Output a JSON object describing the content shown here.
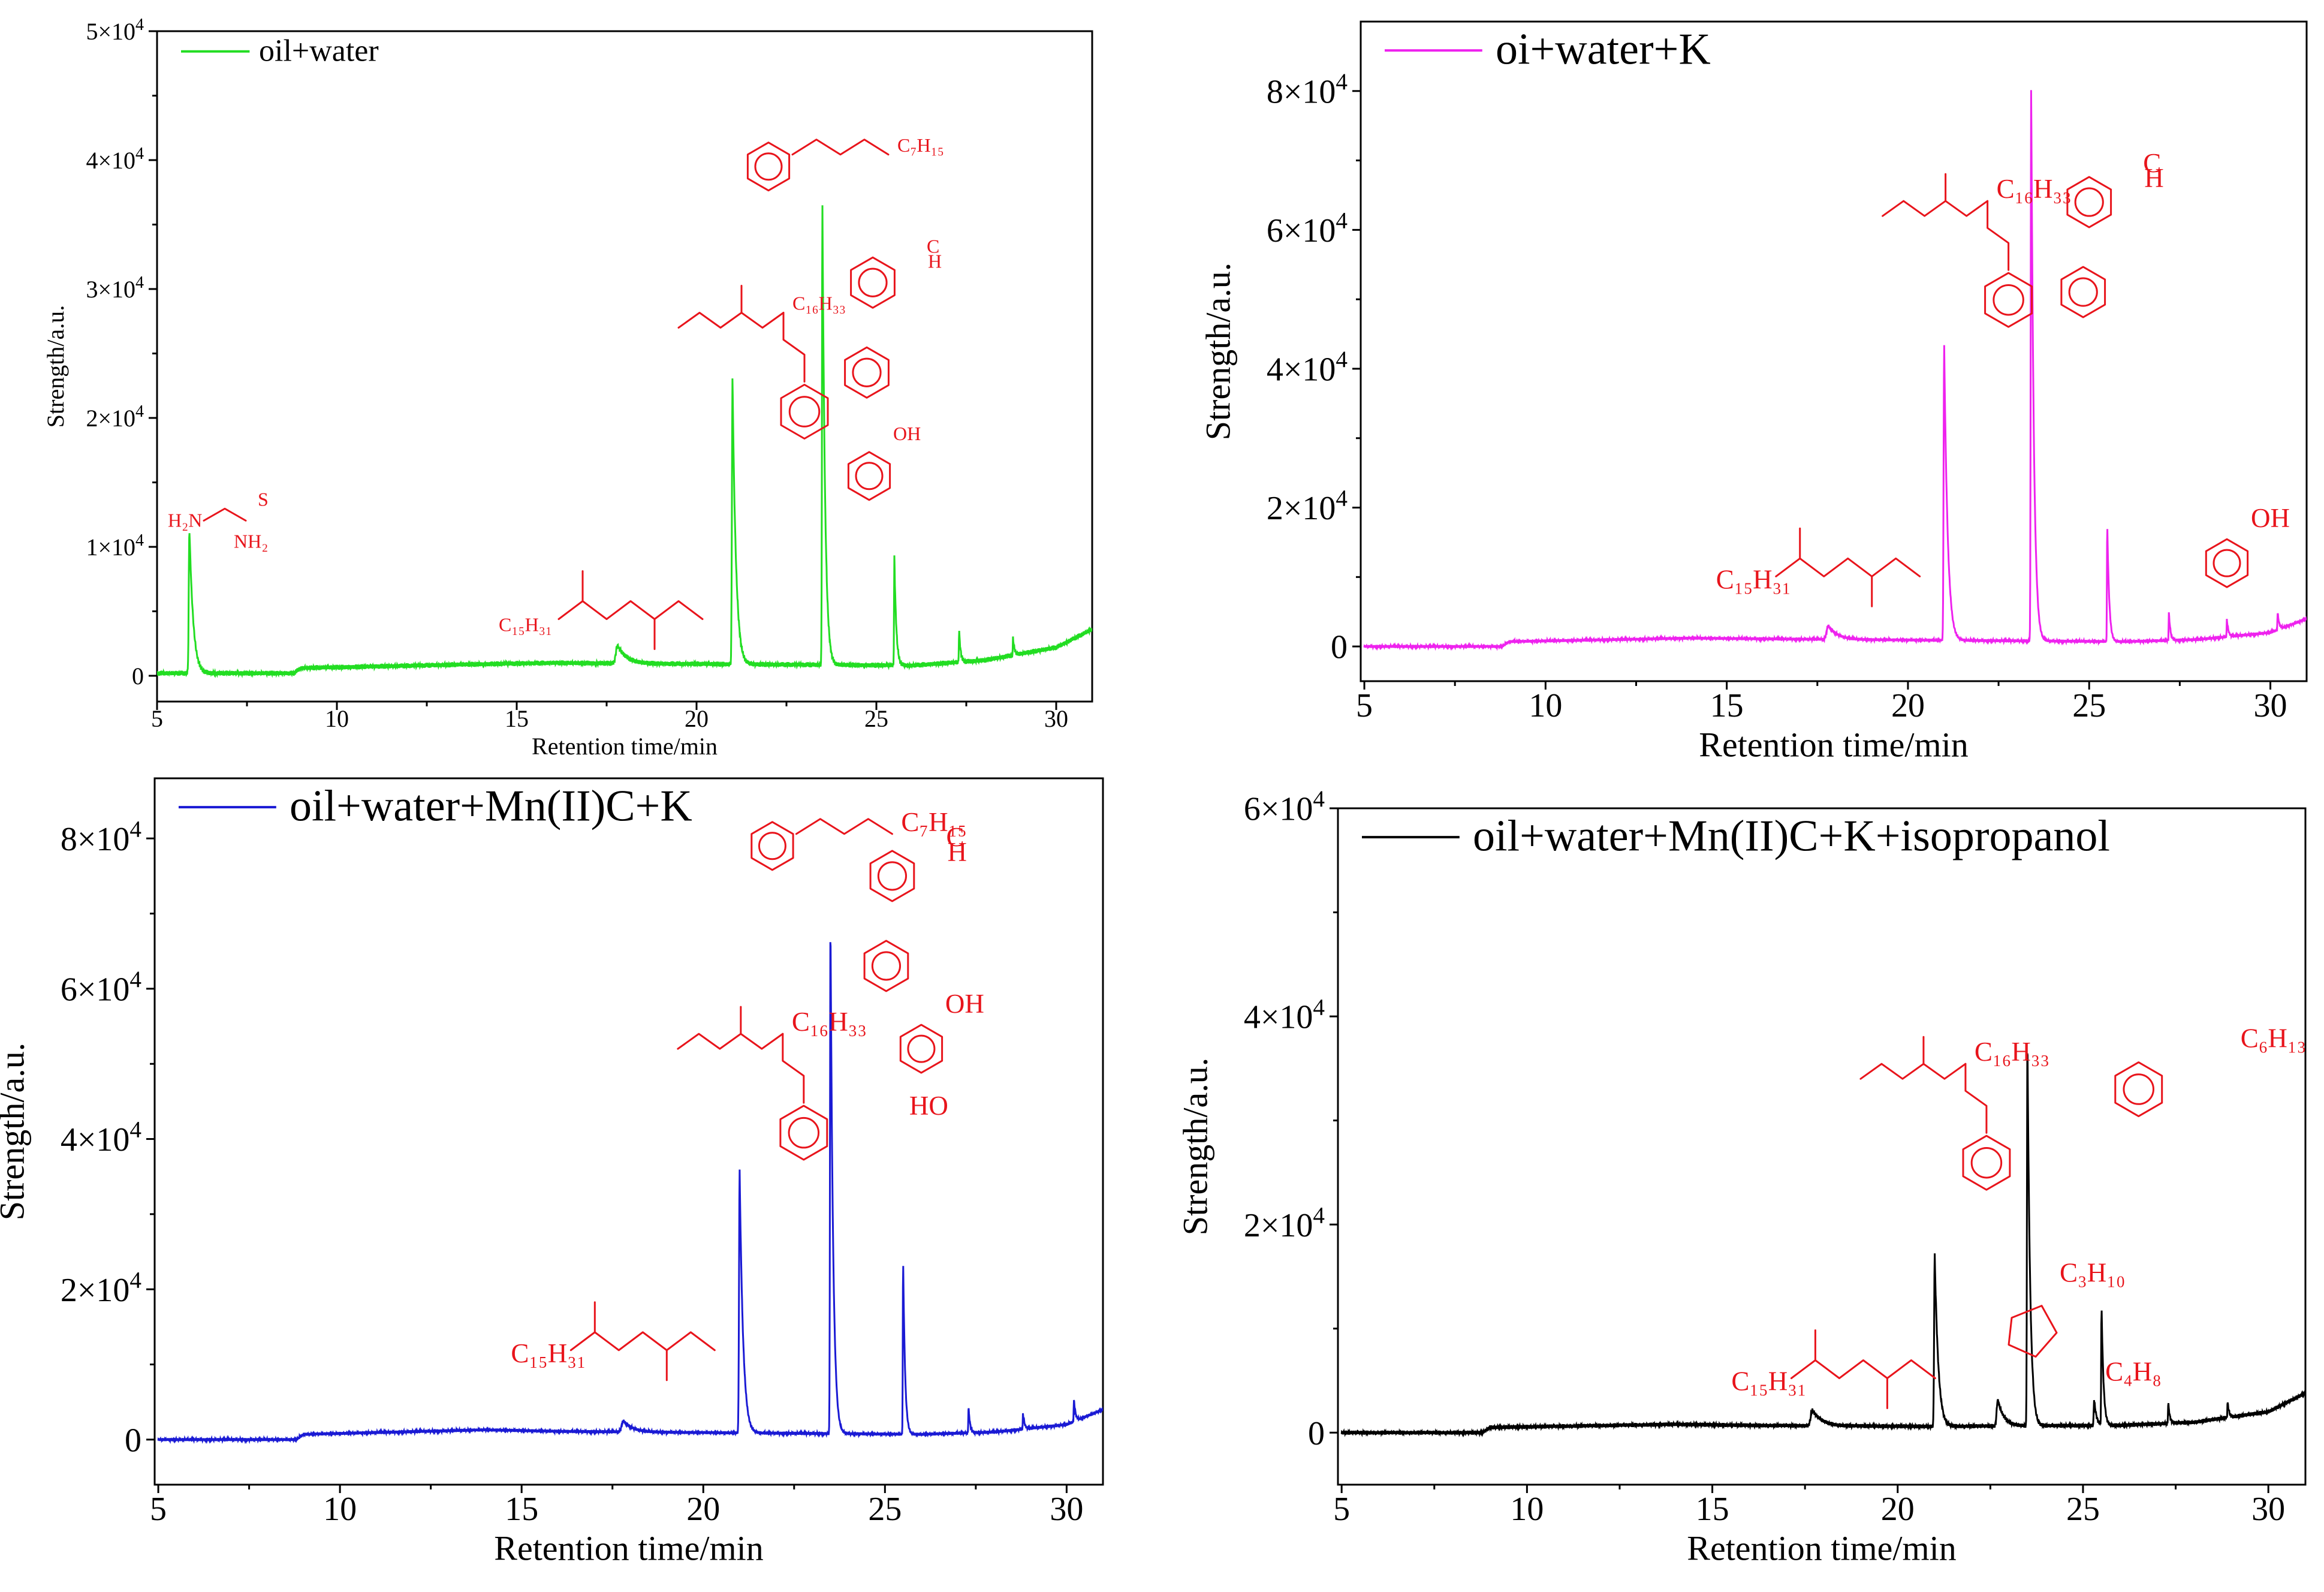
{
  "figure": {
    "annotation_color": "#e8141b"
  },
  "chart_data": [
    {
      "type": "line",
      "panel": "top-left",
      "title": "",
      "xlabel": "Retention time/min",
      "ylabel": "Strength/a.u.",
      "xlim": [
        5,
        31
      ],
      "ylim": [
        -2000,
        50000
      ],
      "xticks": [
        "5",
        "10",
        "15",
        "20",
        "25",
        "30"
      ],
      "xtick_values": [
        5,
        10,
        15,
        20,
        25,
        30
      ],
      "ytick_values": [
        0,
        10000,
        20000,
        30000,
        40000,
        50000
      ],
      "yticks": [
        {
          "mantissa": "0",
          "exponent": ""
        },
        {
          "mantissa": "1×10",
          "exponent": "4"
        },
        {
          "mantissa": "2×10",
          "exponent": "4"
        },
        {
          "mantissa": "3×10",
          "exponent": "4"
        },
        {
          "mantissa": "4×10",
          "exponent": "4"
        },
        {
          "mantissa": "5×10",
          "exponent": "4"
        }
      ],
      "legend_position": "top-left",
      "series": [
        {
          "name": "oil+water",
          "color": "#22dd22"
        }
      ],
      "peaks": [
        {
          "x": 5.9,
          "y": 11200,
          "w": 0.05
        },
        {
          "x": 17.8,
          "y": 1400,
          "w": 0.12
        },
        {
          "x": 21.0,
          "y": 22200,
          "w": 0.045
        },
        {
          "x": 23.5,
          "y": 35800,
          "w": 0.035
        },
        {
          "x": 25.5,
          "y": 8500,
          "w": 0.025
        },
        {
          "x": 27.3,
          "y": 2500,
          "w": 0.02
        },
        {
          "x": 28.8,
          "y": 1300,
          "w": 0.02
        }
      ],
      "baseline": [
        [
          5,
          200
        ],
        [
          8.8,
          200
        ],
        [
          9,
          600
        ],
        [
          14,
          900
        ],
        [
          16,
          1000
        ],
        [
          20.8,
          900
        ],
        [
          26,
          800
        ],
        [
          28,
          1200
        ],
        [
          30,
          2200
        ],
        [
          31,
          3600
        ]
      ],
      "annotations": {
        "thiourea": {
          "h2n": "H₂N",
          "nh2": "NH₂",
          "s": "S"
        },
        "ester": {
          "label": "C₁₅H₃₁"
        },
        "amide": {
          "label": "C₁₆H₃₃"
        },
        "carbamate": {
          "label": "C₇H₁₅"
        },
        "nitro_benzamide": {
          "ester": "C",
          "ester2": "H"
        },
        "acid": {
          "oh": "OH"
        }
      }
    },
    {
      "type": "line",
      "panel": "top-right",
      "title": "",
      "xlabel": "Retention time/min",
      "ylabel": "Strength/a.u.",
      "xlim": [
        4.9,
        31
      ],
      "ylim": [
        -5000,
        90000
      ],
      "xticks": [
        "5",
        "10",
        "15",
        "20",
        "25",
        "30"
      ],
      "xtick_values": [
        5,
        10,
        15,
        20,
        25,
        30
      ],
      "ytick_values": [
        0,
        20000,
        40000,
        60000,
        80000
      ],
      "yticks": [
        {
          "mantissa": "0",
          "exponent": ""
        },
        {
          "mantissa": "2×10",
          "exponent": "4"
        },
        {
          "mantissa": "4×10",
          "exponent": "4"
        },
        {
          "mantissa": "6×10",
          "exponent": "4"
        },
        {
          "mantissa": "8×10",
          "exponent": "4"
        }
      ],
      "legend_position": "top-left",
      "series": [
        {
          "name": "oi+water+K",
          "color": "#ee22ee"
        }
      ],
      "peaks": [
        {
          "x": 17.8,
          "y": 2000,
          "w": 0.12
        },
        {
          "x": 21.0,
          "y": 42500,
          "w": 0.045
        },
        {
          "x": 23.4,
          "y": 80000,
          "w": 0.035
        },
        {
          "x": 25.5,
          "y": 17000,
          "w": 0.025
        },
        {
          "x": 27.2,
          "y": 4000,
          "w": 0.02
        },
        {
          "x": 28.8,
          "y": 2500,
          "w": 0.02
        },
        {
          "x": 30.2,
          "y": 2500,
          "w": 0.02
        }
      ],
      "baseline": [
        [
          5,
          0
        ],
        [
          8.8,
          0
        ],
        [
          9,
          700
        ],
        [
          14,
          1200
        ],
        [
          16,
          1100
        ],
        [
          20.8,
          900
        ],
        [
          26,
          700
        ],
        [
          28,
          1000
        ],
        [
          30,
          2000
        ],
        [
          31,
          4000
        ]
      ],
      "annotations": {
        "ester": {
          "label": "C₁₅H₃₁"
        },
        "amide": {
          "label": "C₁₆H₃₃"
        },
        "nitro_benzamide": {
          "ester": "C",
          "ester2": "H"
        },
        "acid": {
          "oh": "OH"
        }
      }
    },
    {
      "type": "line",
      "panel": "bottom-left",
      "title": "",
      "xlabel": "Retention time/min",
      "ylabel": "Strength/a.u.",
      "xlim": [
        4.9,
        31
      ],
      "ylim": [
        -6000,
        88000
      ],
      "xticks": [
        "5",
        "10",
        "15",
        "20",
        "25",
        "30"
      ],
      "xtick_values": [
        5,
        10,
        15,
        20,
        25,
        30
      ],
      "ytick_values": [
        0,
        20000,
        40000,
        60000,
        80000
      ],
      "yticks": [
        {
          "mantissa": "0",
          "exponent": ""
        },
        {
          "mantissa": "2×10",
          "exponent": "4"
        },
        {
          "mantissa": "4×10",
          "exponent": "4"
        },
        {
          "mantissa": "6×10",
          "exponent": "4"
        },
        {
          "mantissa": "8×10",
          "exponent": "4"
        }
      ],
      "legend_position": "top-left",
      "series": [
        {
          "name": "oil+water+Mn(II)C+K",
          "color": "#1a1ad4"
        }
      ],
      "peaks": [
        {
          "x": 17.8,
          "y": 1500,
          "w": 0.12
        },
        {
          "x": 21.0,
          "y": 35000,
          "w": 0.045
        },
        {
          "x": 23.5,
          "y": 68500,
          "w": 0.035
        },
        {
          "x": 25.5,
          "y": 23500,
          "w": 0.025
        },
        {
          "x": 27.3,
          "y": 3500,
          "w": 0.02
        },
        {
          "x": 28.8,
          "y": 2000,
          "w": 0.02
        },
        {
          "x": 30.2,
          "y": 3000,
          "w": 0.02
        }
      ],
      "baseline": [
        [
          5,
          0
        ],
        [
          8.8,
          0
        ],
        [
          9,
          700
        ],
        [
          14,
          1300
        ],
        [
          16,
          1100
        ],
        [
          20.8,
          900
        ],
        [
          26,
          700
        ],
        [
          28,
          1000
        ],
        [
          30,
          2000
        ],
        [
          31,
          4000
        ]
      ],
      "annotations": {
        "ester": {
          "label": "C₁₅H₃₁"
        },
        "amide": {
          "label": "C₁₆H₃₃"
        },
        "carbamate": {
          "label": "C₇H₁₅"
        },
        "nitro_benzamide": {
          "ester": "C",
          "ester2": "H"
        },
        "acid": {
          "oh": "OH",
          "ho": "HO",
          "cooh_a": "HO",
          "cooh_b": "OH"
        }
      }
    },
    {
      "type": "line",
      "panel": "bottom-right",
      "title": "",
      "xlabel": "Retention time/min",
      "ylabel": "Strength/a.u.",
      "xlim": [
        4.9,
        31
      ],
      "ylim": [
        -5000,
        60000
      ],
      "xticks": [
        "5",
        "10",
        "15",
        "20",
        "25",
        "30"
      ],
      "xtick_values": [
        5,
        10,
        15,
        20,
        25,
        30
      ],
      "ytick_values": [
        0,
        20000,
        40000,
        60000
      ],
      "yticks": [
        {
          "mantissa": "0",
          "exponent": ""
        },
        {
          "mantissa": "2×10",
          "exponent": "4"
        },
        {
          "mantissa": "4×10",
          "exponent": "4"
        },
        {
          "mantissa": "6×10",
          "exponent": "4"
        }
      ],
      "legend_position": "top-left",
      "series": [
        {
          "name": "oil+water+Mn(II)C+K+isopropanol",
          "color": "#000000"
        }
      ],
      "peaks": [
        {
          "x": 17.7,
          "y": 1500,
          "w": 0.12
        },
        {
          "x": 21.0,
          "y": 16500,
          "w": 0.045
        },
        {
          "x": 22.7,
          "y": 2500,
          "w": 0.08
        },
        {
          "x": 23.5,
          "y": 37500,
          "w": 0.035
        },
        {
          "x": 25.3,
          "y": 2500,
          "w": 0.03
        },
        {
          "x": 25.5,
          "y": 11500,
          "w": 0.025
        },
        {
          "x": 27.3,
          "y": 2000,
          "w": 0.02
        },
        {
          "x": 28.9,
          "y": 1500,
          "w": 0.02
        }
      ],
      "baseline": [
        [
          5,
          0
        ],
        [
          8.8,
          0
        ],
        [
          9,
          500
        ],
        [
          14,
          800
        ],
        [
          16,
          700
        ],
        [
          20.8,
          600
        ],
        [
          26,
          700
        ],
        [
          28,
          1000
        ],
        [
          30,
          2000
        ],
        [
          31,
          3800
        ]
      ],
      "annotations": {
        "ester": {
          "label": "C₁₅H₃₁"
        },
        "amide": {
          "label": "C₁₆H₃₃"
        },
        "nitrile1": {
          "label": "C₃H₁₀"
        },
        "nitrile2": {
          "label": "C₄H₈"
        },
        "hexyl": {
          "label": "C₆H₁₃"
        }
      }
    }
  ]
}
